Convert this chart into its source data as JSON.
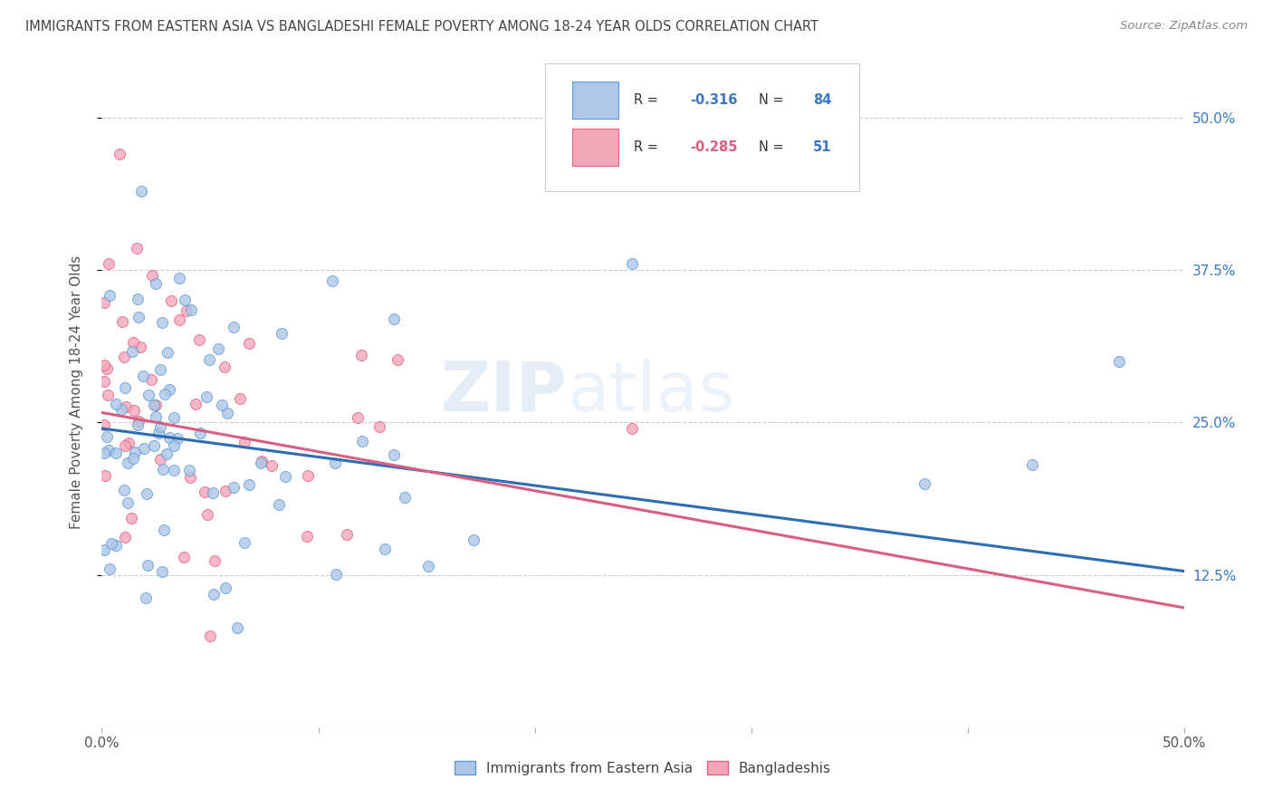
{
  "title": "IMMIGRANTS FROM EASTERN ASIA VS BANGLADESHI FEMALE POVERTY AMONG 18-24 YEAR OLDS CORRELATION CHART",
  "source": "Source: ZipAtlas.com",
  "ylabel": "Female Poverty Among 18-24 Year Olds",
  "xlim": [
    0.0,
    0.5
  ],
  "ylim": [
    0.0,
    0.55
  ],
  "ytick_positions": [
    0.125,
    0.25,
    0.375,
    0.5
  ],
  "ytick_labels": [
    "12.5%",
    "25.0%",
    "37.5%",
    "50.0%"
  ],
  "series1_color": "#aec6e8",
  "series1_edge": "#5b9bd5",
  "series2_color": "#f4a7b9",
  "series2_edge": "#e06080",
  "line1_color": "#2e6db4",
  "line2_color": "#d95f82",
  "R1": -0.316,
  "N1": 84,
  "R2": -0.285,
  "N2": 51,
  "legend1": "Immigrants from Eastern Asia",
  "legend2": "Bangladeshis",
  "watermark": "ZIPatlas",
  "bg_color": "#ffffff",
  "grid_color": "#c8c8c8",
  "title_color": "#444444",
  "line1_start_y": 0.245,
  "line1_end_y": 0.128,
  "line2_start_y": 0.258,
  "line2_end_y": 0.098
}
